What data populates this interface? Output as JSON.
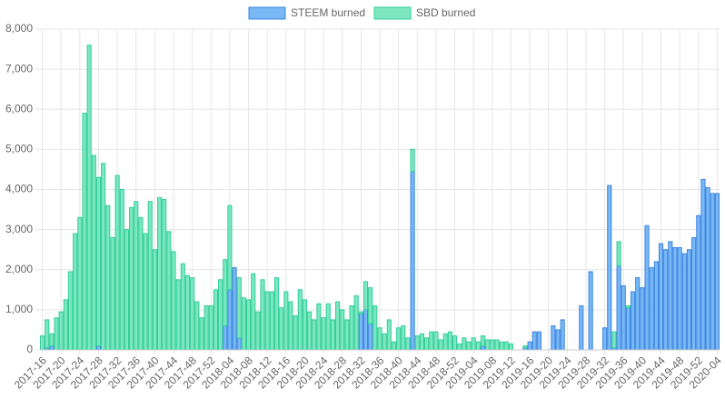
{
  "chart_data": {
    "type": "bar",
    "stacked": true,
    "grid": true,
    "legend": "top",
    "categories": [
      "2017-16",
      null,
      null,
      null,
      "2017-20",
      null,
      null,
      null,
      "2017-24",
      null,
      null,
      null,
      "2017-28",
      null,
      null,
      null,
      "2017-32",
      null,
      null,
      null,
      "2017-36",
      null,
      null,
      null,
      "2017-40",
      null,
      null,
      null,
      "2017-44",
      null,
      null,
      null,
      "2017-48",
      null,
      null,
      null,
      "2017-52",
      null,
      null,
      null,
      "2018-04",
      null,
      null,
      null,
      "2018-08",
      null,
      null,
      null,
      "2018-12",
      null,
      null,
      null,
      "2018-16",
      null,
      null,
      null,
      "2018-20",
      null,
      null,
      null,
      "2018-24",
      null,
      null,
      null,
      "2018-28",
      null,
      null,
      null,
      "2018-32",
      null,
      null,
      null,
      "2018-36",
      null,
      null,
      null,
      "2018-40",
      null,
      null,
      null,
      "2018-44",
      null,
      null,
      null,
      "2018-48",
      null,
      null,
      null,
      "2018-52",
      null,
      null,
      null,
      "2019-04",
      null,
      null,
      null,
      "2019-08",
      null,
      null,
      null,
      "2019-12",
      null,
      null,
      null,
      "2019-16",
      null,
      null,
      null,
      "2019-20",
      null,
      null,
      null,
      "2019-24",
      null,
      null,
      null,
      "2019-28",
      null,
      null,
      null,
      "2019-32",
      null,
      null,
      null,
      "2019-36",
      null,
      null,
      null,
      "2019-40",
      null,
      null,
      null,
      "2019-44",
      null,
      null,
      null,
      "2019-48",
      null,
      null,
      null,
      "2019-52",
      null,
      null,
      null,
      "2020-04"
    ],
    "series": [
      {
        "name": "STEEM burned",
        "color": "#7ab8f5",
        "border": "#3a85e0",
        "values": [
          0,
          50,
          100,
          0,
          0,
          0,
          0,
          0,
          0,
          0,
          0,
          0,
          100,
          0,
          0,
          0,
          0,
          0,
          0,
          0,
          0,
          0,
          0,
          0,
          0,
          0,
          0,
          0,
          0,
          0,
          0,
          0,
          0,
          0,
          0,
          0,
          0,
          0,
          0,
          600,
          1500,
          2050,
          300,
          0,
          0,
          0,
          0,
          0,
          0,
          0,
          0,
          0,
          0,
          0,
          0,
          0,
          0,
          0,
          0,
          0,
          0,
          0,
          0,
          0,
          0,
          0,
          0,
          0,
          900,
          1000,
          650,
          0,
          0,
          0,
          0,
          0,
          0,
          0,
          0,
          4450,
          0,
          0,
          0,
          0,
          0,
          0,
          0,
          0,
          0,
          0,
          0,
          0,
          0,
          0,
          100,
          0,
          0,
          0,
          0,
          0,
          0,
          0,
          0,
          50,
          200,
          450,
          450,
          0,
          0,
          600,
          500,
          750,
          0,
          0,
          0,
          1100,
          0,
          1950,
          0,
          0,
          550,
          4100,
          50,
          2100,
          1600,
          1050,
          1450,
          1800,
          1550,
          3100,
          2050,
          2200,
          2650,
          2500,
          2700,
          2550,
          2550,
          2400,
          2500,
          2800,
          3350,
          4250,
          4050,
          3900,
          3900
        ]
      },
      {
        "name": "SBD burned",
        "color": "#7ee6c0",
        "border": "#2fcf9a",
        "values": [
          350,
          700,
          300,
          800,
          950,
          1250,
          1950,
          2900,
          3300,
          5900,
          7600,
          4850,
          4200,
          4650,
          3600,
          2800,
          4350,
          4000,
          3000,
          3550,
          3700,
          3300,
          2900,
          3700,
          2500,
          3800,
          3750,
          2950,
          2450,
          1750,
          2150,
          1850,
          1800,
          1200,
          800,
          1100,
          1100,
          1500,
          1750,
          1650,
          2100,
          0,
          1500,
          1300,
          1250,
          1900,
          950,
          1750,
          1450,
          1450,
          1800,
          1050,
          1450,
          1200,
          850,
          1500,
          1250,
          950,
          750,
          1150,
          800,
          1150,
          750,
          1200,
          1000,
          750,
          1100,
          1350,
          50,
          700,
          900,
          1100,
          550,
          400,
          750,
          200,
          550,
          600,
          300,
          550,
          350,
          400,
          300,
          450,
          450,
          250,
          400,
          450,
          350,
          150,
          300,
          200,
          300,
          200,
          250,
          250,
          250,
          250,
          200,
          200,
          150,
          0,
          0,
          50,
          0,
          0,
          0,
          0,
          0,
          0,
          0,
          0,
          0,
          0,
          0,
          0,
          0,
          0,
          0,
          0,
          0,
          0,
          400,
          600,
          0,
          50,
          0,
          0,
          0,
          0,
          0,
          0,
          0,
          0,
          0,
          0,
          0,
          0,
          0,
          0,
          0,
          0,
          0,
          0,
          0
        ]
      }
    ],
    "ylim": [
      0,
      8000
    ],
    "yticks": [
      0,
      {
        "value": 1000,
        "label": "1,000"
      },
      {
        "value": 2000,
        "label": "2,000"
      },
      {
        "value": 3000,
        "label": "3,000"
      },
      {
        "value": 4000,
        "label": "4,000"
      },
      {
        "value": 5000,
        "label": "5,000"
      },
      {
        "value": 6000,
        "label": "6,000"
      },
      {
        "value": 7000,
        "label": "7,000"
      },
      {
        "value": 8000,
        "label": "8,000"
      }
    ]
  }
}
